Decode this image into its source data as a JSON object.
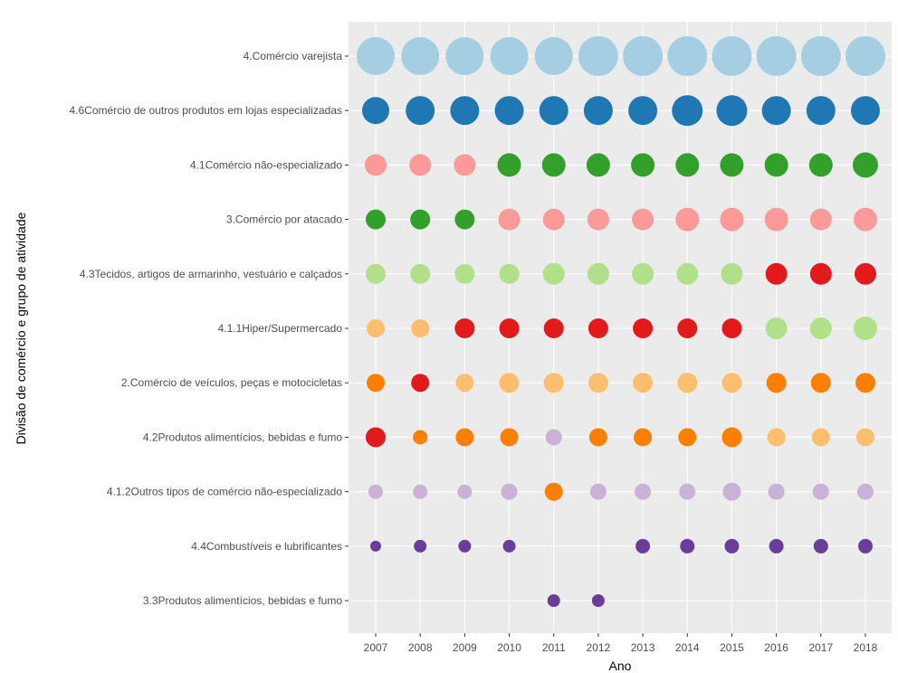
{
  "chart_data": {
    "type": "scatter",
    "xlabel": "Ano",
    "ylabel": "Divisão de comércio e grupo de atividade",
    "x": [
      "2007",
      "2008",
      "2009",
      "2010",
      "2011",
      "2012",
      "2013",
      "2014",
      "2015",
      "2016",
      "2017",
      "2018"
    ],
    "categories": [
      "4.Comércio varejista",
      "4.6Comércio de outros produtos em lojas especializadas",
      "4.1Comércio não-especializado",
      "3.Comércio por atacado",
      "4.3Tecidos, artigos de armarinho, vestuário e calçados",
      "4.1.1Hiper/Supermercado",
      "2.Comércio de veículos, peças e motocicletas",
      "4.2Produtos alimentícios, bebidas e fumo",
      "4.1.2Outros tipos de comércio não-especializado",
      "4.4Combustíveis e lubrificantes",
      "3.3Produtos alimentícios, bebidas e fumo"
    ],
    "color_scale": [
      "#a6cee3",
      "#1f78b4",
      "#b2df8a",
      "#33a02c",
      "#fb9a99",
      "#e31a1c",
      "#fdbf6f",
      "#ff7f00",
      "#cab2d6",
      "#6a3d9a"
    ],
    "rows": [
      {
        "ranks": [
          1,
          1,
          1,
          1,
          1,
          1,
          1,
          1,
          1,
          1,
          1,
          1
        ],
        "sizes": [
          21,
          21,
          21,
          21,
          21,
          22,
          22,
          22,
          22,
          22,
          22,
          22
        ]
      },
      {
        "ranks": [
          2,
          2,
          2,
          2,
          2,
          2,
          2,
          2,
          2,
          2,
          2,
          2
        ],
        "sizes": [
          15,
          16,
          16,
          16,
          16,
          16,
          16,
          17,
          17,
          16,
          16,
          16
        ]
      },
      {
        "ranks": [
          5,
          5,
          5,
          4,
          4,
          4,
          4,
          4,
          4,
          4,
          4,
          4
        ],
        "sizes": [
          12,
          12,
          12,
          13,
          13,
          13,
          13,
          13,
          13,
          13,
          13,
          14
        ]
      },
      {
        "ranks": [
          4,
          4,
          4,
          5,
          5,
          5,
          5,
          5,
          5,
          5,
          5,
          5
        ],
        "sizes": [
          11,
          11,
          11,
          12,
          12,
          12,
          12,
          13,
          13,
          13,
          12,
          13
        ]
      },
      {
        "ranks": [
          3,
          3,
          3,
          3,
          3,
          3,
          3,
          3,
          3,
          6,
          6,
          6
        ],
        "sizes": [
          11,
          11,
          11,
          11,
          12,
          12,
          12,
          12,
          12,
          12,
          12,
          12
        ]
      },
      {
        "ranks": [
          7,
          7,
          6,
          6,
          6,
          6,
          6,
          6,
          6,
          3,
          3,
          3
        ],
        "sizes": [
          10,
          10,
          11,
          11,
          11,
          11,
          11,
          11,
          11,
          12,
          12,
          13
        ]
      },
      {
        "ranks": [
          8,
          6,
          7,
          7,
          7,
          7,
          7,
          7,
          7,
          8,
          8,
          8
        ],
        "sizes": [
          10,
          10,
          10,
          11,
          11,
          11,
          11,
          11,
          11,
          11,
          11,
          11
        ]
      },
      {
        "ranks": [
          6,
          8,
          8,
          8,
          9,
          8,
          8,
          8,
          8,
          7,
          7,
          7
        ],
        "sizes": [
          11,
          8,
          10,
          10,
          9,
          10,
          10,
          10,
          11,
          10,
          10,
          10
        ]
      },
      {
        "ranks": [
          9,
          9,
          9,
          9,
          8,
          9,
          9,
          9,
          9,
          9,
          9,
          9
        ],
        "sizes": [
          8,
          8,
          8,
          9,
          10,
          9,
          9,
          9,
          10,
          9,
          9,
          9
        ]
      },
      {
        "ranks": [
          10,
          10,
          10,
          10,
          null,
          null,
          10,
          10,
          10,
          10,
          10,
          10
        ],
        "sizes": [
          6,
          7,
          7,
          7,
          null,
          null,
          8,
          8,
          8,
          8,
          8,
          8
        ]
      },
      {
        "ranks": [
          null,
          null,
          null,
          null,
          10,
          10,
          null,
          null,
          null,
          null,
          null,
          null
        ],
        "sizes": [
          null,
          null,
          null,
          null,
          7,
          7,
          null,
          null,
          null,
          null,
          null,
          null
        ]
      }
    ],
    "grid": true,
    "legend": "none"
  }
}
